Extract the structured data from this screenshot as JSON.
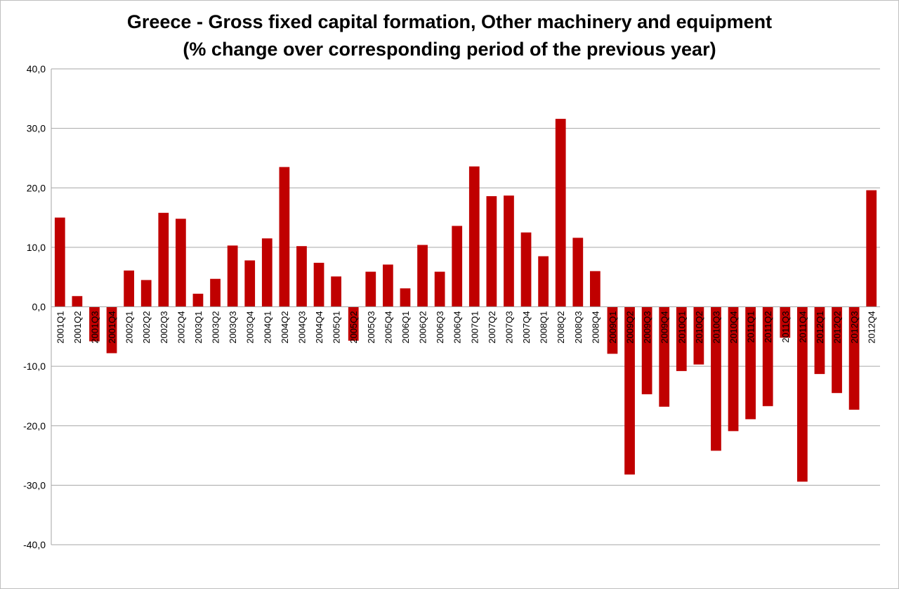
{
  "chart_data": {
    "type": "bar",
    "title": "Greece - Gross fixed capital formation, Other machinery and equipment",
    "subtitle": "(% change over corresponding period of the previous year)",
    "xlabel": "",
    "ylabel": "",
    "ylim": [
      -40,
      40
    ],
    "yticks": [
      40,
      30,
      20,
      10,
      0,
      -10,
      -20,
      -30,
      -40
    ],
    "ytick_labels": [
      "40,0",
      "30,0",
      "20,0",
      "10,0",
      "0,0",
      "-10,0",
      "-20,0",
      "-30,0",
      "-40,0"
    ],
    "grid": true,
    "legend": "none",
    "bar_color": "#c00000",
    "categories": [
      "2001Q1",
      "2001Q2",
      "2001Q3",
      "2001Q4",
      "2002Q1",
      "2002Q2",
      "2002Q3",
      "2002Q4",
      "2003Q1",
      "2003Q2",
      "2003Q3",
      "2003Q4",
      "2004Q1",
      "2004Q2",
      "2004Q3",
      "2004Q4",
      "2005Q1",
      "2005Q2",
      "2005Q3",
      "2005Q4",
      "2006Q1",
      "2006Q2",
      "2006Q3",
      "2006Q4",
      "2007Q1",
      "2007Q2",
      "2007Q3",
      "2007Q4",
      "2008Q1",
      "2008Q2",
      "2008Q3",
      "2008Q4",
      "2009Q1",
      "2009Q2",
      "2009Q3",
      "2009Q4",
      "2010Q1",
      "2010Q2",
      "2010Q3",
      "2010Q4",
      "2011Q1",
      "2011Q2",
      "2011Q3",
      "2011Q4",
      "2012Q1",
      "2012Q2",
      "2012Q3",
      "2012Q4"
    ],
    "values": [
      15.0,
      1.8,
      -5.8,
      -7.8,
      6.1,
      4.5,
      15.8,
      14.8,
      2.2,
      4.7,
      10.3,
      7.8,
      11.5,
      23.5,
      10.2,
      7.4,
      5.1,
      -5.7,
      5.9,
      7.1,
      3.1,
      10.4,
      5.9,
      13.6,
      23.6,
      18.6,
      18.7,
      12.5,
      8.5,
      31.6,
      11.6,
      6.0,
      -7.9,
      -28.2,
      -14.7,
      -16.8,
      -10.8,
      -9.7,
      -24.2,
      -20.9,
      -18.9,
      -16.7,
      -5.2,
      -29.4,
      -11.3,
      -14.5,
      -17.3,
      19.6
    ]
  }
}
